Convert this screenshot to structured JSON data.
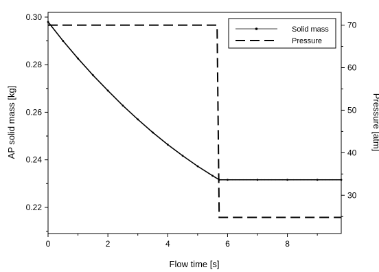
{
  "chart_data": {
    "type": "line",
    "xlabel": "Flow time [s]",
    "ylabel": "AP solid mass [kg]",
    "y2label": "Pressure [atm]",
    "xlim": [
      0,
      9.8
    ],
    "ylim": [
      0.209,
      0.302
    ],
    "y2lim": [
      21,
      73
    ],
    "x_ticks": [
      "0",
      "2",
      "4",
      "6",
      "8"
    ],
    "y_ticks": [
      "0.30",
      "0.28",
      "0.26",
      "0.24",
      "0.22"
    ],
    "y2_ticks": [
      "70",
      "60",
      "50",
      "40",
      "30"
    ],
    "grid": false,
    "legend_position": "top-right",
    "series": [
      {
        "name": "Solid mass",
        "axis": "left",
        "style": "solid line with dot markers",
        "color": "#000000",
        "x": [
          0,
          0.5,
          1.0,
          1.5,
          2.0,
          2.5,
          3.0,
          3.5,
          4.0,
          4.5,
          5.0,
          5.5,
          5.72,
          6.0,
          7.0,
          8.0,
          9.0,
          9.8
        ],
        "y": [
          0.298,
          0.29,
          0.2826,
          0.2756,
          0.2691,
          0.2628,
          0.257,
          0.2515,
          0.2464,
          0.2417,
          0.2373,
          0.2333,
          0.2316,
          0.2316,
          0.2316,
          0.2316,
          0.2316,
          0.2316
        ]
      },
      {
        "name": "Pressure",
        "axis": "right",
        "style": "dashed",
        "color": "#000000",
        "x": [
          0,
          5.65,
          5.72,
          6.0,
          9.8
        ],
        "y": [
          70,
          70,
          24.8,
          24.8,
          24.8
        ]
      }
    ]
  }
}
